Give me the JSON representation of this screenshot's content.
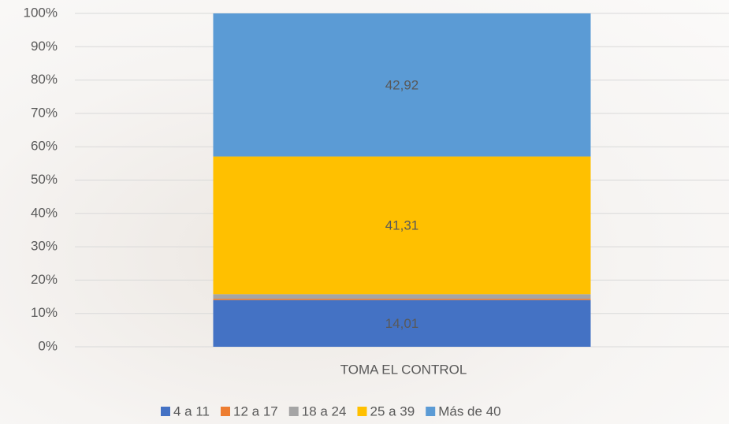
{
  "chart_data": {
    "type": "stacked-bar",
    "categories": [
      "TOMA EL CONTROL"
    ],
    "series": [
      {
        "name": "4 a 11",
        "color": "#4472c4",
        "values": [
          14.01
        ],
        "value_labels": [
          "14,01"
        ]
      },
      {
        "name": "12 a 17",
        "color": "#ed7d31",
        "values": [
          0.4
        ],
        "value_labels": [
          null
        ]
      },
      {
        "name": "18 a 24",
        "color": "#a5a5a5",
        "values": [
          1.36
        ],
        "value_labels": [
          null
        ]
      },
      {
        "name": "25 a 39",
        "color": "#ffc000",
        "values": [
          41.31
        ],
        "value_labels": [
          "41,31"
        ]
      },
      {
        "name": "Más de 40",
        "color": "#5b9bd5",
        "values": [
          42.92
        ],
        "value_labels": [
          "42,92"
        ]
      }
    ],
    "ylim": [
      0,
      100
    ],
    "yticks": [
      {
        "value": 0,
        "label": "0%"
      },
      {
        "value": 10,
        "label": "10%"
      },
      {
        "value": 20,
        "label": "20%"
      },
      {
        "value": 30,
        "label": "30%"
      },
      {
        "value": 40,
        "label": "40%"
      },
      {
        "value": 50,
        "label": "50%"
      },
      {
        "value": 60,
        "label": "60%"
      },
      {
        "value": 70,
        "label": "70%"
      },
      {
        "value": 80,
        "label": "80%"
      },
      {
        "value": 90,
        "label": "90%"
      },
      {
        "value": 100,
        "label": "100%"
      }
    ],
    "grid": true,
    "legend": "bottom"
  }
}
